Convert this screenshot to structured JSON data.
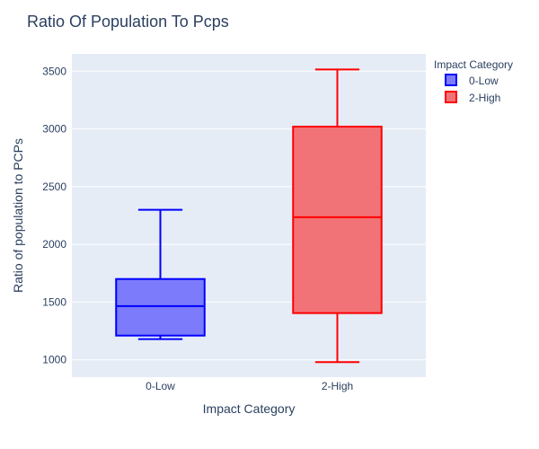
{
  "chart_data": {
    "type": "box",
    "title": "Ratio Of Population To Pcps",
    "xlabel": "Impact Category",
    "ylabel": "Ratio of population to PCPs",
    "categories": [
      "0-Low",
      "2-High"
    ],
    "ylim": [
      850,
      3650
    ],
    "yticks": [
      1000,
      1500,
      2000,
      2500,
      3000,
      3500
    ],
    "legend": {
      "title": "Impact Category",
      "placement": "top-right",
      "entries": [
        "0-Low",
        "2-High"
      ]
    },
    "series": [
      {
        "name": "0-Low",
        "category": "0-Low",
        "color": "#0000ff",
        "fill": "#7b7bfb",
        "min": 1180,
        "q1": 1210,
        "median": 1465,
        "q3": 1700,
        "max": 2300
      },
      {
        "name": "2-High",
        "category": "2-High",
        "color": "#ff0000",
        "fill": "#f17377",
        "min": 980,
        "q1": 1405,
        "median": 2235,
        "q3": 3020,
        "max": 3515
      }
    ],
    "grid": true
  }
}
